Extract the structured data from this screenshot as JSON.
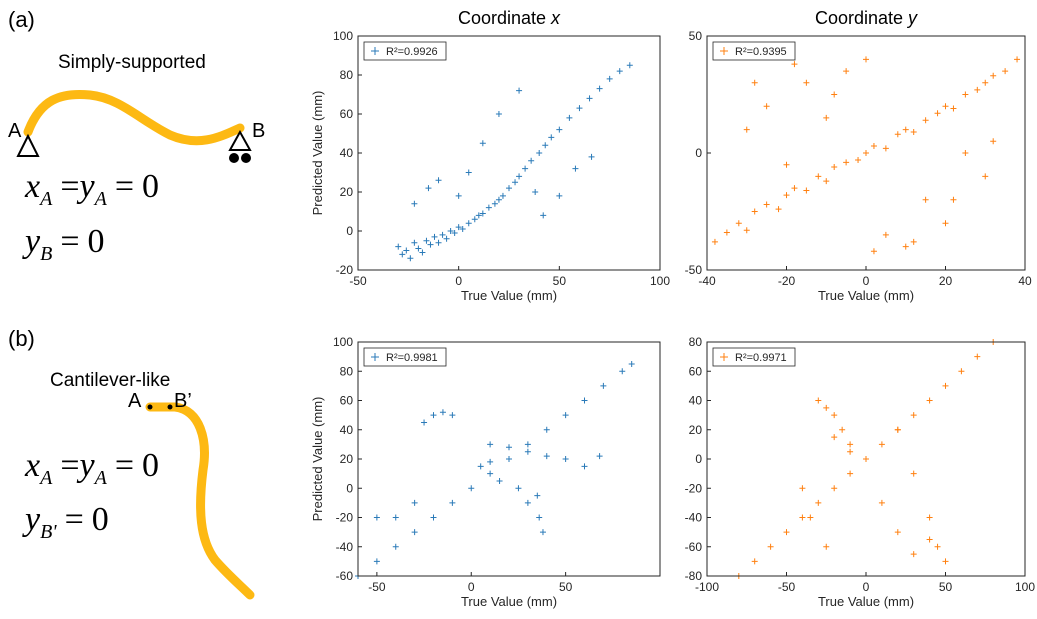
{
  "labels": {
    "a": "(a)",
    "b": "(b)",
    "a_title": "Simply-supported",
    "b_title": "Cantilever-like",
    "a_A": "A",
    "a_B": "B",
    "b_A": "A",
    "b_B": "B’",
    "a_eq1": [
      "x",
      "A",
      "=",
      "y",
      "A",
      "=",
      "0"
    ],
    "a_eq2": [
      "y",
      "B",
      "=",
      "0"
    ],
    "b_eq1": [
      "x",
      "A",
      "=",
      "y",
      "A",
      "=",
      "0"
    ],
    "b_eq2": [
      "y",
      "B'",
      "=",
      "0"
    ]
  },
  "chart_data": [
    {
      "type": "scatter",
      "title": [
        "Coordinate",
        "x"
      ],
      "xlabel": "True Value (mm)",
      "ylabel": "Predicted Value (mm)",
      "xlim": [
        -50,
        100
      ],
      "ylim": [
        -20,
        100
      ],
      "xticks": [
        -50,
        0,
        50,
        100
      ],
      "yticks": [
        -20,
        0,
        20,
        40,
        60,
        80,
        100
      ],
      "legend": "upper left",
      "series": [
        {
          "name": "R²=0.9926",
          "color": "#2a7ab8",
          "x": [
            -30,
            -28,
            -26,
            -24,
            -22,
            -20,
            -18,
            -16,
            -14,
            -12,
            -10,
            -8,
            -6,
            -4,
            -2,
            0,
            2,
            5,
            8,
            10,
            12,
            15,
            18,
            20,
            22,
            25,
            28,
            30,
            33,
            36,
            40,
            43,
            46,
            50,
            55,
            60,
            65,
            70,
            75,
            80,
            85,
            -22,
            -15,
            -10,
            0,
            5,
            12,
            20,
            30,
            38,
            42,
            50,
            58,
            66
          ],
          "values": [
            -8,
            -12,
            -10,
            -14,
            -6,
            -9,
            -11,
            -5,
            -7,
            -3,
            -6,
            -2,
            -4,
            0,
            -1,
            2,
            1,
            4,
            6,
            8,
            9,
            12,
            14,
            16,
            18,
            22,
            25,
            28,
            32,
            36,
            40,
            44,
            48,
            52,
            58,
            63,
            68,
            73,
            78,
            82,
            85,
            14,
            22,
            26,
            18,
            30,
            45,
            60,
            72,
            20,
            8,
            18,
            32,
            38
          ]
        }
      ]
    },
    {
      "type": "scatter",
      "title": [
        "Coordinate",
        "y"
      ],
      "xlabel": "True Value (mm)",
      "xlim": [
        -40,
        40
      ],
      "ylim": [
        -50,
        50
      ],
      "xticks": [
        -40,
        -20,
        0,
        20,
        40
      ],
      "yticks": [
        -50,
        0,
        50
      ],
      "legend": "upper left",
      "series": [
        {
          "name": "R²=0.9395",
          "color": "#ff8010",
          "x": [
            -38,
            -35,
            -32,
            -30,
            -28,
            -25,
            -22,
            -20,
            -18,
            -15,
            -12,
            -10,
            -8,
            -5,
            -2,
            0,
            2,
            5,
            8,
            10,
            12,
            15,
            18,
            20,
            22,
            25,
            28,
            30,
            32,
            35,
            38,
            -30,
            -25,
            -20,
            -15,
            -10,
            -5,
            0,
            5,
            10,
            15,
            20,
            25,
            30,
            -28,
            -18,
            -8,
            2,
            12,
            22,
            32
          ],
          "values": [
            -38,
            -34,
            -30,
            -33,
            -25,
            -22,
            -24,
            -18,
            -15,
            -16,
            -10,
            -12,
            -6,
            -4,
            -3,
            0,
            3,
            2,
            8,
            10,
            9,
            14,
            17,
            20,
            19,
            25,
            27,
            30,
            33,
            35,
            40,
            10,
            20,
            -5,
            30,
            15,
            35,
            40,
            -35,
            -40,
            -20,
            -30,
            0,
            -10,
            30,
            38,
            25,
            -42,
            -38,
            -20,
            5
          ]
        }
      ]
    },
    {
      "type": "scatter",
      "xlabel": "True Value (mm)",
      "ylabel": "Predicted Value (mm)",
      "xlim": [
        -60,
        100
      ],
      "ylim": [
        -60,
        100
      ],
      "xticks": [
        -50,
        0,
        50
      ],
      "yticks": [
        -60,
        -40,
        -20,
        0,
        20,
        40,
        60,
        80,
        100
      ],
      "legend": "upper left",
      "series": [
        {
          "name": "R²=0.9981",
          "color": "#2a7ab8",
          "x": [
            -60,
            -50,
            -40,
            -30,
            -20,
            -10,
            0,
            10,
            20,
            30,
            40,
            50,
            60,
            70,
            80,
            85,
            -25,
            -20,
            -15,
            -10,
            -50,
            -40,
            -30,
            10,
            20,
            30,
            40,
            50,
            60,
            68,
            15,
            25,
            35,
            30,
            36,
            38,
            5,
            10
          ],
          "values": [
            -60,
            -50,
            -40,
            -30,
            -20,
            -10,
            0,
            10,
            20,
            30,
            40,
            50,
            60,
            70,
            80,
            85,
            45,
            50,
            52,
            50,
            -20,
            -20,
            -10,
            30,
            28,
            25,
            22,
            20,
            15,
            22,
            5,
            0,
            -5,
            -10,
            -20,
            -30,
            15,
            18
          ]
        }
      ]
    },
    {
      "type": "scatter",
      "xlabel": "True Value (mm)",
      "xlim": [
        -100,
        100
      ],
      "ylim": [
        -80,
        80
      ],
      "xticks": [
        -100,
        -50,
        0,
        50,
        100
      ],
      "yticks": [
        -80,
        -60,
        -40,
        -20,
        0,
        20,
        40,
        60,
        80
      ],
      "legend": "upper left",
      "series": [
        {
          "name": "R²=0.9971",
          "color": "#ff8010",
          "x": [
            -80,
            -70,
            -60,
            -50,
            -40,
            -30,
            -20,
            -10,
            0,
            10,
            20,
            30,
            40,
            50,
            60,
            70,
            80,
            -30,
            -25,
            -20,
            -15,
            -10,
            -40,
            -35,
            -25,
            10,
            20,
            30,
            40,
            -20,
            -10,
            20,
            30,
            40,
            45,
            50
          ],
          "values": [
            -80,
            -70,
            -60,
            -50,
            -40,
            -30,
            -20,
            -10,
            0,
            10,
            20,
            30,
            40,
            50,
            60,
            70,
            80,
            40,
            35,
            30,
            20,
            10,
            -20,
            -40,
            -60,
            -30,
            -50,
            -65,
            -55,
            15,
            5,
            20,
            -10,
            -40,
            -60,
            -70
          ]
        }
      ]
    }
  ]
}
